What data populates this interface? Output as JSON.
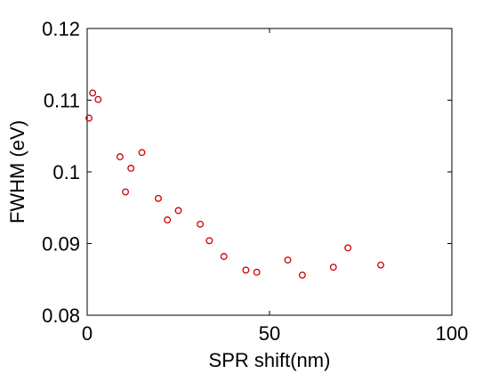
{
  "chart_data": {
    "type": "scatter",
    "title": "",
    "xlabel": "SPR shift(nm)",
    "ylabel": "FWHM (eV)",
    "xlim": [
      0,
      100
    ],
    "ylim": [
      0.08,
      0.12
    ],
    "x_ticks": [
      0,
      50,
      100
    ],
    "x_tick_labels": [
      "0",
      "50",
      "100"
    ],
    "y_ticks": [
      0.08,
      0.09,
      0.1,
      0.11,
      0.12
    ],
    "y_tick_labels": [
      "0.08",
      "0.09",
      "0.1",
      "0.11",
      "0.12"
    ],
    "grid": false,
    "legend": "none",
    "marker": "circle-open",
    "color": "#cc0000",
    "series": [
      {
        "points": [
          {
            "x": 0.5,
            "y": 0.1075
          },
          {
            "x": 1.5,
            "y": 0.111
          },
          {
            "x": 3.0,
            "y": 0.1101
          },
          {
            "x": 9.0,
            "y": 0.1021
          },
          {
            "x": 10.5,
            "y": 0.0972
          },
          {
            "x": 12.0,
            "y": 0.1005
          },
          {
            "x": 15.0,
            "y": 0.1027
          },
          {
            "x": 19.5,
            "y": 0.0963
          },
          {
            "x": 22.0,
            "y": 0.0933
          },
          {
            "x": 25.0,
            "y": 0.0946
          },
          {
            "x": 31.0,
            "y": 0.0927
          },
          {
            "x": 33.5,
            "y": 0.0904
          },
          {
            "x": 37.5,
            "y": 0.0882
          },
          {
            "x": 43.5,
            "y": 0.0863
          },
          {
            "x": 46.5,
            "y": 0.086
          },
          {
            "x": 55.0,
            "y": 0.0877
          },
          {
            "x": 59.0,
            "y": 0.0856
          },
          {
            "x": 67.5,
            "y": 0.0867
          },
          {
            "x": 71.5,
            "y": 0.0894
          },
          {
            "x": 80.5,
            "y": 0.087
          }
        ]
      }
    ]
  }
}
